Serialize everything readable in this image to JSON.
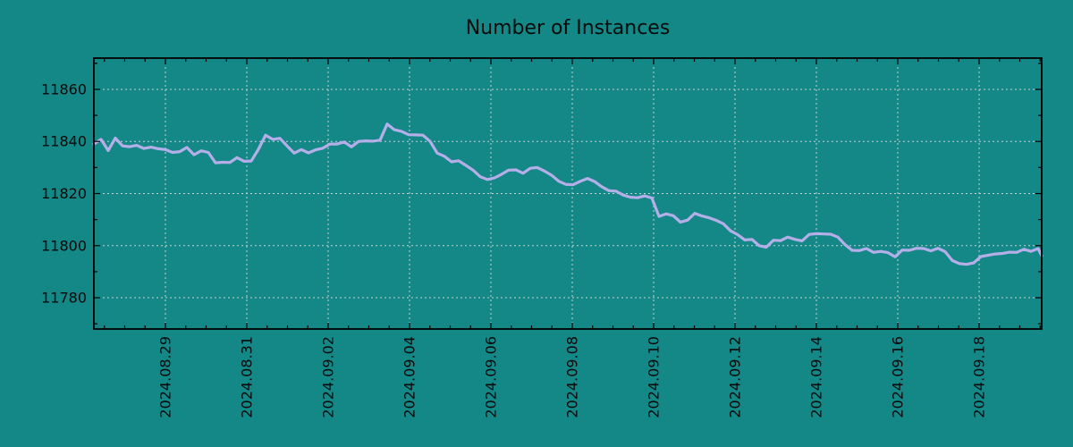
{
  "title": "Number of Instances",
  "colors": {
    "background": "#148787",
    "series_line": "#b4aee9",
    "grid": "#c8d2d2",
    "frame": "#000000",
    "text": "#0a0a0a"
  },
  "chart_data": {
    "type": "line",
    "title": "Number of Instances",
    "grid": "dashed",
    "legend": "none",
    "x_axis": {
      "unit": "date",
      "tick_labels": [
        "2024.08.29",
        "2024.08.31",
        "2024.09.02",
        "2024.09.04",
        "2024.09.06",
        "2024.09.08",
        "2024.09.10",
        "2024.09.12",
        "2024.09.14",
        "2024.09.16",
        "2024.09.18"
      ],
      "tick_day_offsets": [
        0,
        2,
        4,
        6,
        8,
        10,
        12,
        14,
        16,
        18,
        20
      ],
      "minor_tick_step_days": 0.5,
      "range_day_offsets": [
        -1.758,
        21.538
      ]
    },
    "y_axis": {
      "tick_values": [
        11780,
        11800,
        11820,
        11840,
        11860
      ],
      "tick_labels": [
        "11780",
        "11800",
        "11820",
        "11840",
        "11860"
      ],
      "minor_tick_step": 10,
      "range": [
        11768,
        11872
      ]
    },
    "series": [
      {
        "name": "Number of Instances",
        "t_start_days": -1.758,
        "t_step_days": 0.17582,
        "t_end_days": 21.538,
        "values": [
          11839.0,
          11840.8,
          11836.5,
          11841.3,
          11838.3,
          11838.0,
          11838.5,
          11837.3,
          11837.8,
          11837.2,
          11836.9,
          11835.8,
          11836.1,
          11837.7,
          11834.9,
          11836.4,
          11835.8,
          11831.8,
          11832.0,
          11831.9,
          11833.8,
          11832.4,
          11832.5,
          11837.0,
          11842.4,
          11840.8,
          11841.2,
          11838.3,
          11835.5,
          11836.9,
          11835.6,
          11836.8,
          11837.4,
          11839.0,
          11839.0,
          11839.8,
          11837.9,
          11840.0,
          11840.2,
          11840.1,
          11840.5,
          11846.7,
          11844.5,
          11843.9,
          11842.6,
          11842.5,
          11842.4,
          11840.0,
          11835.5,
          11834.3,
          11832.2,
          11832.6,
          11830.8,
          11829.0,
          11826.5,
          11825.4,
          11826.0,
          11827.4,
          11829.0,
          11829.1,
          11827.8,
          11829.7,
          11830.0,
          11828.6,
          11827.0,
          11824.7,
          11823.5,
          11823.4,
          11824.7,
          11825.8,
          11824.6,
          11822.6,
          11821.1,
          11820.9,
          11819.4,
          11818.6,
          11818.4,
          11819.1,
          11818.3,
          11811.2,
          11812.2,
          11811.5,
          11809.0,
          11809.8,
          11812.4,
          11811.4,
          11810.7,
          11809.7,
          11808.4,
          11805.7,
          11804.2,
          11802.2,
          11802.4,
          11800.0,
          11799.4,
          11802.1,
          11801.9,
          11803.3,
          11802.4,
          11801.8,
          11804.3,
          11804.6,
          11804.5,
          11804.4,
          11803.3,
          11800.4,
          11798.2,
          11798.1,
          11798.9,
          11797.4,
          11797.8,
          11797.3,
          11795.7,
          11798.3,
          11798.2,
          11799.0,
          11798.9,
          11798.0,
          11799.0,
          11797.7,
          11794.3,
          11793.1,
          11792.8,
          11793.4,
          11795.8,
          11796.3,
          11796.8,
          11797.0,
          11797.5,
          11797.4,
          11798.6,
          11797.8,
          11798.9,
          11796.1
        ]
      }
    ]
  }
}
